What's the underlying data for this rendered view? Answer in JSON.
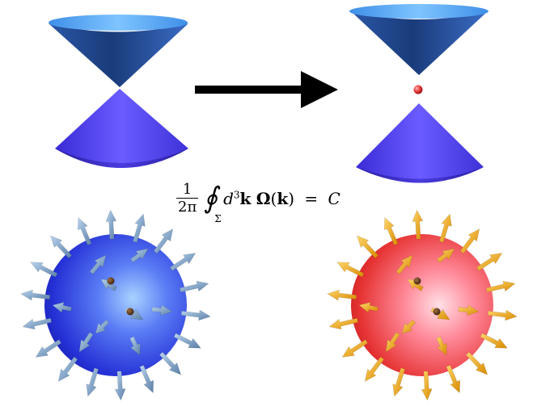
{
  "formula": {
    "numerator": "1",
    "denominator": "2π",
    "integral_symbol": "∮",
    "integral_subscript": "Σ",
    "d": "d",
    "power": "3",
    "k_vector": "k",
    "omega": "Ω",
    "open_paren": "(",
    "k_arg": "k",
    "close_paren": ")",
    "equals": "=",
    "result": "C"
  },
  "colors": {
    "cone_light": "#5aa8ff",
    "cone_dark": "#1c3d7a",
    "cone_lower_light": "#6a55ff",
    "cone_lower_dark": "#2a1f9e",
    "arrow": "#000000",
    "monopole": "#e03030",
    "sphere_blue": "#3a4ff0",
    "sphere_red": "#f04848",
    "arrows_left": "#7aa0c8",
    "arrows_right": "#f2a81a"
  }
}
